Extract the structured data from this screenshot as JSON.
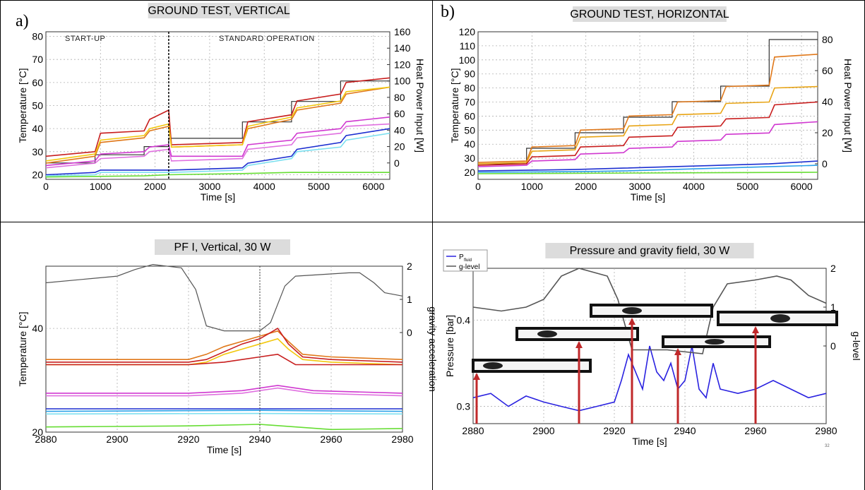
{
  "panels": {
    "a": {
      "label": "a)"
    },
    "b": {
      "label": "b)"
    }
  },
  "chart_data": [
    {
      "type": "line",
      "title": "GROUND TEST, VERTICAL",
      "xlabel": "Time [s]",
      "ylabel": "Temperature [°C]",
      "y2label": "Heat Power Input [W]",
      "xlim": [
        0,
        6300
      ],
      "ylim": [
        18,
        82
      ],
      "y2lim": [
        -20,
        160
      ],
      "xticks": [
        "0",
        "1000",
        "2000",
        "3000",
        "4000",
        "5000",
        "6000"
      ],
      "yticks": [
        "20",
        "30",
        "40",
        "50",
        "60",
        "70",
        "80"
      ],
      "y2ticks": [
        "0",
        "20",
        "40",
        "60",
        "80",
        "100",
        "120",
        "140",
        "160"
      ],
      "annotations": [
        "START-UP",
        "STANDARD OPERATION"
      ],
      "grid": true,
      "colors": [
        "#c81e1e",
        "#e06a1a",
        "#f2c80f",
        "#d038d0",
        "#e070e0",
        "#1c2fd0",
        "#2aa0e8",
        "#7ee0f0",
        "#66dd33",
        "#333333"
      ],
      "series": [
        {
          "role": "heat-power",
          "y_axis": "right",
          "x": [
            0,
            900,
            900,
            1800,
            1800,
            2250,
            2250,
            3600,
            3600,
            4500,
            4500,
            5400,
            5400,
            6300
          ],
          "values": [
            0,
            0,
            10,
            10,
            20,
            20,
            30,
            30,
            50,
            50,
            75,
            75,
            100,
            100
          ]
        },
        {
          "x": [
            0,
            900,
            1000,
            1800,
            1900,
            2250,
            2300,
            3600,
            3700,
            4500,
            4600,
            5400,
            5500,
            6300
          ],
          "values": [
            25,
            28,
            34,
            36,
            39,
            41,
            32,
            33,
            40,
            44,
            48,
            51,
            55,
            58
          ]
        },
        {
          "x": [
            0,
            900,
            1000,
            1800,
            1900,
            2250,
            2300,
            3600,
            3700,
            4500,
            4600,
            5400,
            5500,
            6300
          ],
          "values": [
            28,
            30,
            38,
            39,
            44,
            48,
            33,
            34,
            43,
            46,
            52,
            55,
            60,
            62
          ]
        },
        {
          "x": [
            0,
            900,
            1000,
            1800,
            1900,
            2250,
            2300,
            3600,
            3700,
            4500,
            4600,
            5400,
            5500,
            6300
          ],
          "values": [
            26,
            29,
            35,
            37,
            40,
            42,
            32,
            33,
            41,
            45,
            49,
            52,
            56,
            58
          ]
        },
        {
          "x": [
            0,
            900,
            1000,
            1800,
            1900,
            2250,
            2300,
            3600,
            3700,
            4500,
            4600,
            5400,
            5500,
            6300
          ],
          "values": [
            24,
            26,
            29,
            30,
            32,
            33,
            28,
            28,
            33,
            35,
            38,
            40,
            43,
            45
          ]
        },
        {
          "x": [
            0,
            900,
            1000,
            1800,
            1900,
            2250,
            2300,
            3600,
            3700,
            4500,
            4600,
            5400,
            5500,
            6300
          ],
          "values": [
            23,
            25,
            27,
            28,
            30,
            31,
            26,
            27,
            31,
            33,
            36,
            38,
            41,
            42
          ]
        },
        {
          "x": [
            0,
            900,
            1000,
            1800,
            2250,
            2300,
            3600,
            3700,
            4500,
            4600,
            5400,
            5500,
            6300
          ],
          "values": [
            20,
            21,
            22,
            22,
            22,
            22,
            23,
            25,
            28,
            31,
            34,
            37,
            40
          ]
        },
        {
          "x": [
            0,
            900,
            1000,
            1800,
            2250,
            2300,
            3600,
            3700,
            4500,
            4600,
            5400,
            5500,
            6300
          ],
          "values": [
            19.5,
            20,
            21,
            21,
            21,
            21,
            22,
            24,
            27,
            30,
            32,
            35,
            38
          ]
        },
        {
          "x": [
            0,
            1800,
            2250,
            3600,
            4500,
            5400,
            6300
          ],
          "values": [
            19,
            19.5,
            20,
            20.5,
            21,
            21,
            21
          ]
        }
      ]
    },
    {
      "type": "line",
      "title": "GROUND TEST, HORIZONTAL",
      "xlabel": "Time [s]",
      "ylabel": "Temperature [°C]",
      "y2label": "Heat Power Input [W]",
      "xlim": [
        0,
        6300
      ],
      "ylim": [
        15,
        120
      ],
      "y2lim": [
        -10,
        85
      ],
      "xticks": [
        "0",
        "1000",
        "2000",
        "3000",
        "4000",
        "5000",
        "6000"
      ],
      "yticks": [
        "20",
        "30",
        "40",
        "50",
        "60",
        "70",
        "80",
        "90",
        "100",
        "110",
        "120"
      ],
      "y2ticks": [
        "0",
        "20",
        "40",
        "60",
        "80"
      ],
      "grid": true,
      "series": [
        {
          "role": "heat-power",
          "y_axis": "right",
          "x": [
            0,
            900,
            900,
            1800,
            1800,
            2700,
            2700,
            3600,
            3600,
            4500,
            4500,
            5400,
            5400,
            6300
          ],
          "values": [
            0,
            0,
            10,
            10,
            20,
            20,
            30,
            30,
            40,
            40,
            50,
            50,
            80,
            80
          ]
        },
        {
          "x": [
            0,
            900,
            1000,
            1800,
            1900,
            2700,
            2800,
            3600,
            3700,
            4500,
            4600,
            5400,
            5500,
            6300
          ],
          "values": [
            27,
            28,
            38,
            39,
            50,
            51,
            60,
            61,
            70,
            71,
            81,
            82,
            102,
            104
          ]
        },
        {
          "x": [
            0,
            900,
            1000,
            1800,
            1900,
            2700,
            2800,
            3600,
            3700,
            4500,
            4600,
            5400,
            5500,
            6300
          ],
          "values": [
            26,
            27,
            35,
            36,
            45,
            46,
            53,
            54,
            61,
            62,
            69,
            70,
            80,
            81
          ]
        },
        {
          "x": [
            0,
            900,
            1000,
            1800,
            1900,
            2700,
            2800,
            3600,
            3700,
            4500,
            4600,
            5400,
            5500,
            6300
          ],
          "values": [
            25,
            26,
            31,
            32,
            38,
            39,
            45,
            46,
            52,
            53,
            58,
            59,
            68,
            70
          ]
        },
        {
          "x": [
            0,
            900,
            1000,
            1800,
            1900,
            2700,
            2800,
            3600,
            3700,
            4500,
            4600,
            5400,
            5500,
            6300
          ],
          "values": [
            24,
            25,
            28,
            29,
            33,
            34,
            37,
            38,
            42,
            43,
            47,
            48,
            54,
            56
          ]
        },
        {
          "x": [
            0,
            1800,
            2700,
            3600,
            4500,
            5400,
            6300
          ],
          "values": [
            21,
            22,
            23,
            24,
            25,
            26,
            28
          ]
        },
        {
          "x": [
            0,
            1800,
            2700,
            3600,
            4500,
            5400,
            6300
          ],
          "values": [
            20,
            20.5,
            21,
            22,
            23,
            24,
            25
          ]
        },
        {
          "x": [
            0,
            6300
          ],
          "values": [
            19,
            20
          ]
        }
      ]
    },
    {
      "type": "line",
      "title": "PF I, Vertical, 30 W",
      "xlabel": "Time [s]",
      "ylabel": "Temperature [°C]",
      "y2label": "gravity acceleration",
      "xlim": [
        2880,
        2980
      ],
      "ylim": [
        20,
        52
      ],
      "y2lim": [
        -3,
        2
      ],
      "xticks": [
        "2880",
        "2900",
        "2920",
        "2940",
        "2960",
        "2980"
      ],
      "yticks": [
        "20",
        "40"
      ],
      "y2ticks": [
        "0",
        "1",
        "2"
      ],
      "grid": true,
      "series": [
        {
          "role": "g-level",
          "y_axis": "right",
          "x": [
            2880,
            2890,
            2900,
            2905,
            2910,
            2918,
            2922,
            2925,
            2930,
            2940,
            2943,
            2947,
            2950,
            2965,
            2968,
            2972,
            2975,
            2980
          ],
          "values": [
            1.5,
            1.6,
            1.7,
            1.9,
            2.05,
            1.95,
            1.3,
            0.2,
            0.05,
            0.05,
            0.3,
            1.4,
            1.7,
            1.8,
            1.8,
            1.5,
            1.2,
            1.1
          ]
        },
        {
          "x": [
            2880,
            2920,
            2925,
            2930,
            2935,
            2940,
            2945,
            2948,
            2952,
            2960,
            2980
          ],
          "values": [
            34,
            34,
            35,
            36.5,
            37.5,
            38.5,
            39.5,
            37.5,
            35,
            34.5,
            34
          ]
        },
        {
          "x": [
            2880,
            2920,
            2925,
            2930,
            2935,
            2940,
            2945,
            2948,
            2952,
            2960,
            2980
          ],
          "values": [
            33.5,
            33.5,
            34,
            35.5,
            37,
            38,
            40,
            37,
            34.5,
            34,
            33.5
          ]
        },
        {
          "x": [
            2880,
            2920,
            2925,
            2930,
            2935,
            2940,
            2945,
            2948,
            2952,
            2960,
            2980
          ],
          "values": [
            33,
            33,
            33.5,
            35,
            36,
            37,
            38,
            36,
            34,
            33.5,
            33
          ]
        },
        {
          "x": [
            2880,
            2920,
            2930,
            2940,
            2945,
            2950,
            2960,
            2980
          ],
          "values": [
            33,
            33,
            33.5,
            34.5,
            35,
            33,
            33,
            33
          ]
        },
        {
          "x": [
            2880,
            2920,
            2935,
            2945,
            2955,
            2980
          ],
          "values": [
            27.5,
            27.5,
            28,
            29,
            28,
            27.5
          ]
        },
        {
          "x": [
            2880,
            2920,
            2935,
            2945,
            2955,
            2980
          ],
          "values": [
            27,
            27,
            27.5,
            28.5,
            27.5,
            27
          ]
        },
        {
          "x": [
            2880,
            2940,
            2980
          ],
          "values": [
            24.5,
            24.5,
            24.5
          ]
        },
        {
          "x": [
            2880,
            2940,
            2980
          ],
          "values": [
            24,
            24.2,
            24
          ]
        },
        {
          "x": [
            2880,
            2940,
            2980
          ],
          "values": [
            23.5,
            23.6,
            23.5
          ]
        },
        {
          "x": [
            2880,
            2920,
            2940,
            2960,
            2980
          ],
          "values": [
            21,
            21.2,
            21.5,
            20.5,
            20.7
          ]
        }
      ]
    },
    {
      "type": "line",
      "title": "Pressure and gravity field, 30 W",
      "xlabel": "Time [s]",
      "ylabel": "Pressure [bar]",
      "y2label": "g-level",
      "xlim": [
        2880,
        2980
      ],
      "ylim": [
        0.28,
        0.46
      ],
      "y2lim": [
        -2,
        2
      ],
      "xticks": [
        "2880",
        "2900",
        "2920",
        "2940",
        "2960",
        "2980"
      ],
      "yticks": [
        "0.3",
        "0.4"
      ],
      "y2ticks": [
        "0",
        "1",
        "2"
      ],
      "grid": true,
      "legend": {
        "entries": [
          "P",
          "fluid",
          "g-level"
        ],
        "placement": "top-left"
      },
      "extra_text": "32",
      "series": [
        {
          "name": "Pfluid",
          "x": [
            2880,
            2885,
            2890,
            2895,
            2900,
            2905,
            2910,
            2915,
            2920,
            2922,
            2924,
            2926,
            2928,
            2930,
            2932,
            2934,
            2936,
            2938,
            2940,
            2942,
            2944,
            2946,
            2948,
            2950,
            2955,
            2960,
            2965,
            2970,
            2975,
            2980
          ],
          "values": [
            0.31,
            0.315,
            0.3,
            0.312,
            0.305,
            0.3,
            0.295,
            0.3,
            0.305,
            0.33,
            0.36,
            0.34,
            0.32,
            0.37,
            0.34,
            0.33,
            0.35,
            0.32,
            0.33,
            0.37,
            0.32,
            0.31,
            0.35,
            0.32,
            0.315,
            0.32,
            0.33,
            0.32,
            0.31,
            0.315
          ]
        },
        {
          "name": "g-level",
          "y_axis": "right",
          "x": [
            2880,
            2888,
            2895,
            2900,
            2905,
            2910,
            2918,
            2921,
            2925,
            2935,
            2945,
            2948,
            2952,
            2960,
            2966,
            2970,
            2975,
            2980
          ],
          "values": [
            1.0,
            0.9,
            1.0,
            1.2,
            1.8,
            2.0,
            1.8,
            1.2,
            -0.1,
            -0.1,
            -0.2,
            1.0,
            1.6,
            1.7,
            1.8,
            1.7,
            1.3,
            1.1
          ]
        }
      ]
    }
  ]
}
